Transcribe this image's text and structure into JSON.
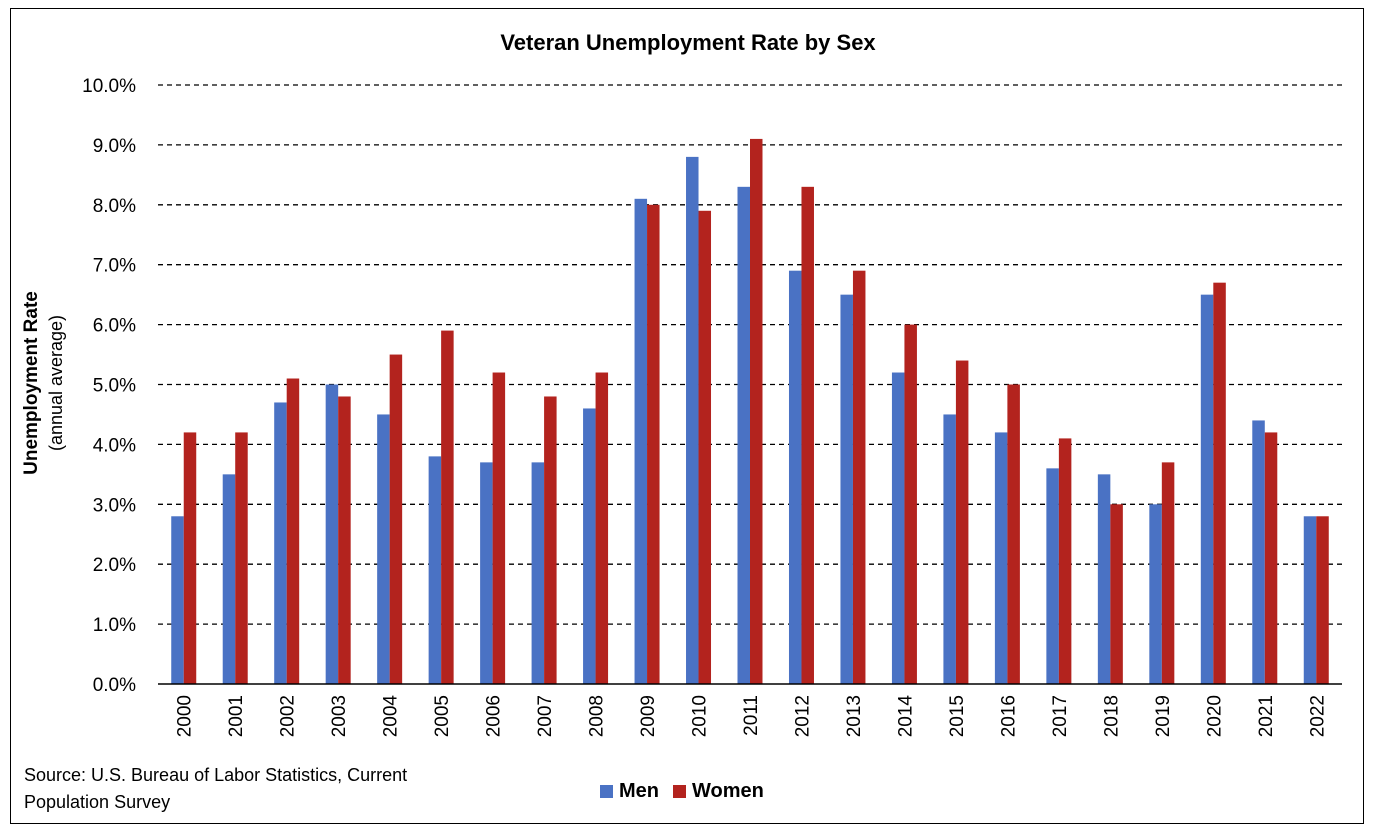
{
  "chart_data": {
    "type": "bar",
    "title": "Veteran Unemployment Rate by Sex",
    "ylabel": "Unemployment Rate",
    "ylabel_sub": "(annual average)",
    "xlabel": "",
    "ylim": [
      0,
      10
    ],
    "yticks": [
      "0.0%",
      "1.0%",
      "2.0%",
      "3.0%",
      "4.0%",
      "5.0%",
      "6.0%",
      "7.0%",
      "8.0%",
      "9.0%",
      "10.0%"
    ],
    "grid": "dashed horizontal",
    "legend_position": "bottom",
    "categories": [
      "2000",
      "2001",
      "2002",
      "2003",
      "2004",
      "2005",
      "2006",
      "2007",
      "2008",
      "2009",
      "2010",
      "2011",
      "2012",
      "2013",
      "2014",
      "2015",
      "2016",
      "2017",
      "2018",
      "2019",
      "2020",
      "2021",
      "2022"
    ],
    "series": [
      {
        "name": "Men",
        "color": "#4a72c4",
        "values": [
          2.8,
          3.5,
          4.7,
          5.0,
          4.5,
          3.8,
          3.7,
          3.7,
          4.6,
          8.1,
          8.8,
          8.3,
          6.9,
          6.5,
          5.2,
          4.5,
          4.2,
          3.6,
          3.5,
          3.0,
          6.5,
          4.4,
          2.8
        ]
      },
      {
        "name": "Women",
        "color": "#b3231e",
        "values": [
          4.2,
          4.2,
          5.1,
          4.8,
          5.5,
          5.9,
          5.2,
          4.8,
          5.2,
          8.0,
          7.9,
          9.1,
          8.3,
          6.9,
          6.0,
          5.4,
          5.0,
          4.1,
          3.0,
          3.7,
          6.7,
          4.2,
          2.8
        ]
      }
    ]
  },
  "source_line1": "Source: U.S. Bureau of Labor Statistics, Current",
  "source_line2": "Population Survey"
}
